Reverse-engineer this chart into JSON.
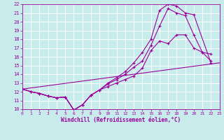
{
  "xlabel": "Windchill (Refroidissement éolien,°C)",
  "xlim": [
    0,
    23
  ],
  "ylim": [
    10,
    22
  ],
  "yticks": [
    10,
    11,
    12,
    13,
    14,
    15,
    16,
    17,
    18,
    19,
    20,
    21,
    22
  ],
  "xticks": [
    0,
    1,
    2,
    3,
    4,
    5,
    6,
    7,
    8,
    9,
    10,
    11,
    12,
    13,
    14,
    15,
    16,
    17,
    18,
    19,
    20,
    21,
    22,
    23
  ],
  "bg_color": "#c8ecec",
  "line_color": "#990099",
  "grid_color": "#aadddd",
  "lines": [
    {
      "x": [
        0,
        23
      ],
      "y": [
        12.3,
        15.3
      ],
      "marker": null
    },
    {
      "x": [
        0,
        1,
        2,
        3,
        4,
        5,
        6,
        7,
        8,
        9,
        10,
        11,
        12,
        13,
        14,
        15,
        16,
        17,
        18,
        19,
        20,
        21,
        22
      ],
      "y": [
        12.3,
        12.0,
        11.8,
        11.5,
        11.3,
        11.4,
        9.9,
        10.5,
        11.6,
        12.2,
        12.6,
        13.0,
        13.4,
        13.8,
        14.7,
        16.7,
        17.8,
        17.5,
        18.5,
        18.5,
        17.0,
        16.5,
        15.5
      ],
      "marker": "+"
    },
    {
      "x": [
        0,
        1,
        2,
        3,
        4,
        5,
        6,
        7,
        8,
        9,
        10,
        11,
        12,
        13,
        14,
        15,
        16,
        17,
        18,
        19,
        20,
        21,
        22
      ],
      "y": [
        12.3,
        12.0,
        11.8,
        11.5,
        11.3,
        11.4,
        9.9,
        10.5,
        11.6,
        12.2,
        12.9,
        13.4,
        14.0,
        14.8,
        15.5,
        17.3,
        19.5,
        21.5,
        21.0,
        20.7,
        18.5,
        16.5,
        16.3
      ],
      "marker": "+"
    },
    {
      "x": [
        0,
        1,
        2,
        3,
        4,
        5,
        6,
        7,
        8,
        9,
        10,
        11,
        12,
        13,
        14,
        15,
        16,
        17,
        18,
        19,
        20,
        22
      ],
      "y": [
        12.3,
        12.0,
        11.8,
        11.5,
        11.3,
        11.4,
        9.9,
        10.5,
        11.6,
        12.2,
        13.0,
        13.6,
        14.3,
        15.3,
        16.5,
        18.0,
        21.3,
        22.0,
        21.8,
        21.0,
        20.8,
        15.3
      ],
      "marker": "+"
    }
  ]
}
